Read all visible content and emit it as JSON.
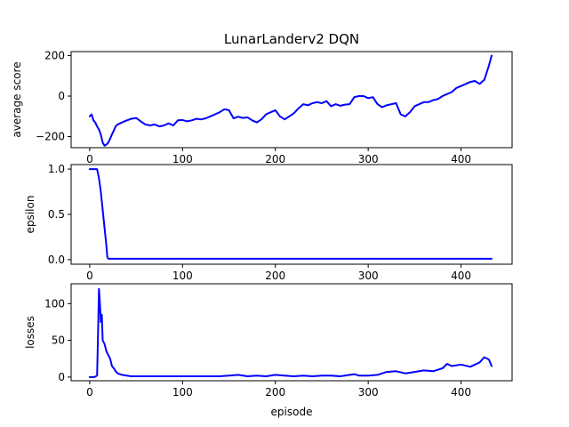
{
  "figure": {
    "title": "LunarLanderv2 DQN",
    "xlabel": "episode",
    "line_color": "#0000ff"
  },
  "chart_data": [
    {
      "type": "line",
      "ylabel": "average score",
      "xlim": [
        -20,
        455
      ],
      "ylim": [
        -255,
        220
      ],
      "xticks": [
        0,
        100,
        200,
        300,
        400
      ],
      "yticks": [
        -200,
        0,
        200
      ],
      "series": [
        {
          "x": [
            0,
            2,
            4,
            6,
            8,
            10,
            12,
            14,
            16,
            18,
            20,
            22,
            24,
            26,
            28,
            30,
            35,
            40,
            45,
            50,
            55,
            60,
            65,
            70,
            75,
            80,
            85,
            90,
            95,
            100,
            105,
            110,
            115,
            120,
            125,
            130,
            135,
            140,
            145,
            150,
            155,
            160,
            165,
            170,
            175,
            180,
            185,
            190,
            195,
            200,
            205,
            210,
            215,
            220,
            225,
            230,
            235,
            240,
            245,
            250,
            255,
            260,
            265,
            270,
            275,
            280,
            285,
            290,
            295,
            300,
            305,
            310,
            315,
            320,
            325,
            330,
            335,
            340,
            345,
            350,
            355,
            360,
            365,
            370,
            375,
            380,
            385,
            390,
            395,
            400,
            405,
            410,
            415,
            420,
            425,
            430,
            433
          ],
          "y": [
            -100,
            -90,
            -120,
            -130,
            -150,
            -165,
            -190,
            -230,
            -245,
            -240,
            -230,
            -210,
            -190,
            -170,
            -150,
            -140,
            -130,
            -120,
            -112,
            -108,
            -125,
            -140,
            -145,
            -140,
            -150,
            -145,
            -135,
            -145,
            -120,
            -118,
            -125,
            -120,
            -112,
            -115,
            -110,
            -100,
            -90,
            -80,
            -65,
            -70,
            -110,
            -102,
            -108,
            -105,
            -120,
            -130,
            -115,
            -90,
            -80,
            -70,
            -100,
            -115,
            -100,
            -85,
            -60,
            -40,
            -45,
            -35,
            -30,
            -35,
            -25,
            -50,
            -40,
            -48,
            -42,
            -40,
            -5,
            0,
            0,
            -10,
            -5,
            -40,
            -55,
            -45,
            -40,
            -35,
            -90,
            -100,
            -80,
            -50,
            -40,
            -30,
            -30,
            -20,
            -15,
            0,
            10,
            20,
            40,
            50,
            60,
            70,
            75,
            60,
            80,
            150,
            200
          ]
        }
      ]
    },
    {
      "type": "line",
      "ylabel": "epsilon",
      "xlim": [
        -20,
        455
      ],
      "ylim": [
        -0.05,
        1.05
      ],
      "xticks": [
        0,
        100,
        200,
        300,
        400
      ],
      "yticks": [
        0.0,
        0.5,
        1.0
      ],
      "series": [
        {
          "x": [
            0,
            6,
            8,
            10,
            12,
            14,
            16,
            18,
            19,
            20,
            25,
            100,
            200,
            300,
            400,
            433
          ],
          "y": [
            1.0,
            1.0,
            1.0,
            0.9,
            0.75,
            0.55,
            0.35,
            0.15,
            0.03,
            0.01,
            0.01,
            0.01,
            0.01,
            0.01,
            0.01,
            0.01
          ]
        }
      ]
    },
    {
      "type": "line",
      "ylabel": "losses",
      "xlim": [
        -20,
        455
      ],
      "ylim": [
        -5,
        127
      ],
      "xticks": [
        0,
        100,
        200,
        300,
        400
      ],
      "yticks": [
        0,
        50,
        100
      ],
      "series": [
        {
          "x": [
            0,
            5,
            8,
            9,
            10,
            11,
            12,
            13,
            14,
            16,
            18,
            20,
            22,
            24,
            26,
            28,
            30,
            35,
            40,
            45,
            50,
            60,
            70,
            80,
            90,
            100,
            120,
            140,
            150,
            160,
            170,
            180,
            190,
            200,
            210,
            220,
            230,
            240,
            250,
            260,
            270,
            280,
            285,
            290,
            300,
            310,
            320,
            330,
            340,
            350,
            360,
            370,
            380,
            385,
            390,
            400,
            410,
            420,
            425,
            430,
            433
          ],
          "y": [
            0,
            0,
            2,
            60,
            120,
            100,
            75,
            85,
            50,
            45,
            35,
            30,
            25,
            15,
            12,
            8,
            5,
            3,
            2,
            1,
            1,
            1,
            1,
            1,
            1,
            1,
            1,
            1,
            2,
            3,
            1,
            2,
            1,
            3,
            2,
            1,
            2,
            1,
            2,
            2,
            1,
            3,
            4,
            2,
            2,
            3,
            7,
            8,
            5,
            7,
            9,
            8,
            12,
            18,
            15,
            17,
            14,
            20,
            27,
            24,
            15
          ]
        }
      ]
    }
  ]
}
